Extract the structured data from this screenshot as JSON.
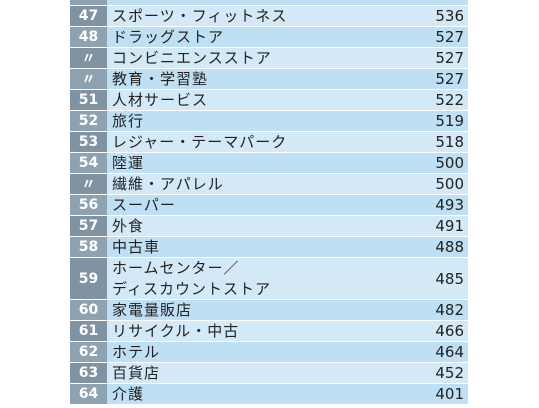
{
  "table": {
    "rows": [
      [
        "47",
        "スポーツ・フィットネス",
        536
      ],
      [
        "48",
        "ドラッグストア",
        527
      ],
      [
        "〃",
        "コンビニエンスストア",
        527
      ],
      [
        "〃",
        "教育・学習塾",
        527
      ],
      [
        "51",
        "人材サービス",
        522
      ],
      [
        "52",
        "旅行",
        519
      ],
      [
        "53",
        "レジャー・テーマパーク",
        518
      ],
      [
        "54",
        "陸運",
        500
      ],
      [
        "〃",
        "繊維・アパレル",
        500
      ],
      [
        "56",
        "スーパー",
        493
      ],
      [
        "57",
        "外食",
        491
      ],
      [
        "58",
        "中古車",
        488
      ],
      [
        "59",
        "ホームセンター／\nディスカウントストア",
        485
      ],
      [
        "60",
        "家電量販店",
        482
      ],
      [
        "61",
        "リサイクル・中古",
        466
      ],
      [
        "62",
        "ホテル",
        464
      ],
      [
        "63",
        "百貨店",
        452
      ],
      [
        "64",
        "介護",
        401
      ]
    ]
  }
}
